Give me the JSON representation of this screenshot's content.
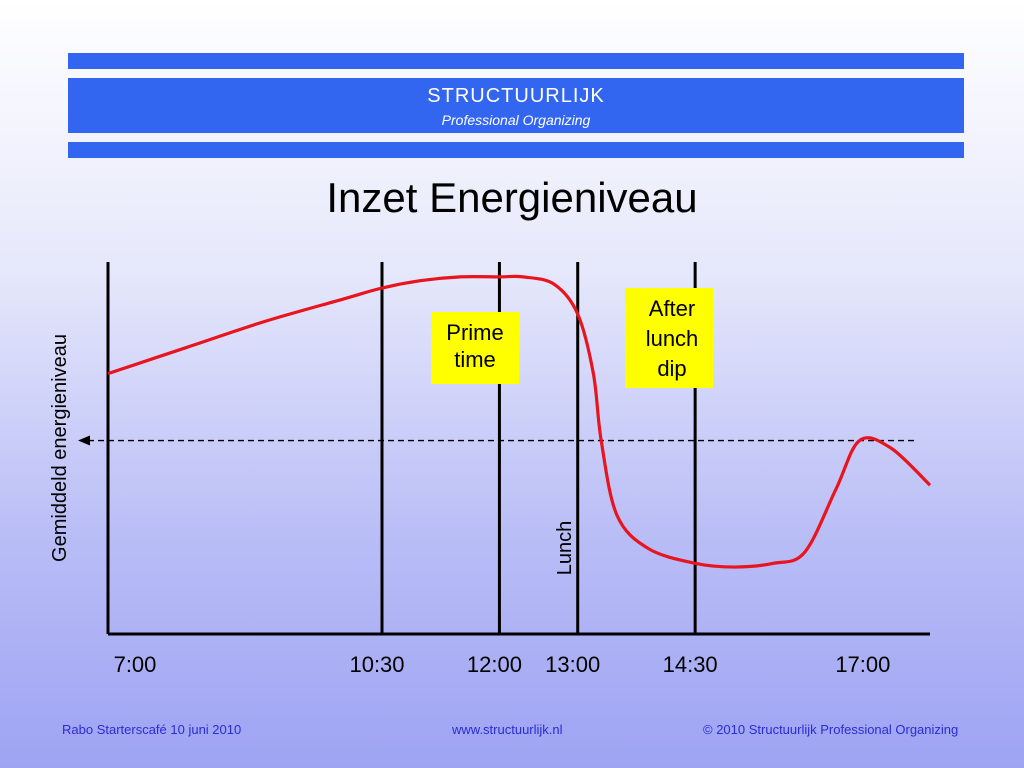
{
  "header": {
    "brand_name": "STRUCTUURLIJK",
    "brand_tagline": "Professional Organizing",
    "band_color": "#3366f0"
  },
  "slide": {
    "title": "Inzet Energieniveau"
  },
  "chart_data": {
    "type": "line",
    "ylabel": "Gemiddeld energieniveau",
    "x_ticks": [
      "7:00",
      "10:30",
      "12:00",
      "13:00",
      "14:30",
      "17:00"
    ],
    "xlim": [
      7.0,
      17.5
    ],
    "ylim": [
      0,
      10
    ],
    "grid": false,
    "vertical_markers": [
      10.5,
      12.0,
      13.0,
      14.5
    ],
    "average_level": 5.2,
    "series": [
      {
        "color": "#e8141e",
        "x": [
          7.0,
          8.0,
          9.0,
          10.0,
          10.5,
          11.0,
          11.5,
          12.0,
          12.3,
          12.7,
          13.0,
          13.2,
          13.3,
          13.5,
          13.9,
          14.5,
          15.0,
          15.5,
          15.9,
          16.3,
          16.6,
          17.0,
          17.5
        ],
        "y": [
          7.0,
          7.7,
          8.4,
          9.0,
          9.3,
          9.5,
          9.6,
          9.6,
          9.6,
          9.4,
          8.6,
          7.0,
          5.2,
          3.2,
          2.3,
          1.9,
          1.8,
          1.9,
          2.2,
          3.9,
          5.2,
          5.0,
          4.0
        ]
      }
    ],
    "annotations": [
      {
        "text": "Prime time",
        "lines": [
          "Prime",
          "time"
        ],
        "background": "#ffff00"
      },
      {
        "text": "After lunch dip",
        "lines": [
          "After",
          "lunch",
          "dip"
        ],
        "background": "#ffff00"
      },
      {
        "text": "Lunch",
        "rotated": true
      }
    ]
  },
  "footer": {
    "left": "Rabo Starterscafé 10 juni 2010",
    "center": "www.structuurlijk.nl",
    "right": "© 2010 Structuurlijk Professional Organizing"
  }
}
